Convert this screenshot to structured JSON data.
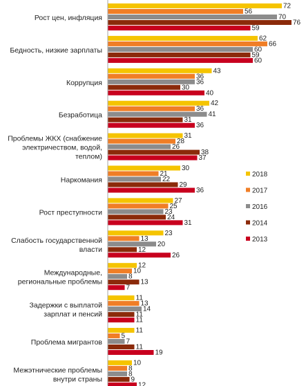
{
  "chart_data": {
    "type": "bar",
    "orientation": "horizontal",
    "grouped": true,
    "categories": [
      [
        "Рост цен, инфляция"
      ],
      [
        "Бедность, низкие зарплаты"
      ],
      [
        "Коррупция"
      ],
      [
        "Безработица"
      ],
      [
        "Проблемы ЖКХ (снабжение",
        "электричеством, водой,",
        "теплом)"
      ],
      [
        "Наркомания"
      ],
      [
        "Рост преступности"
      ],
      [
        "Слабость государственной",
        "власти"
      ],
      [
        "Международные,",
        "региональные проблемы"
      ],
      [
        "Задержки с выплатой",
        "зарплат и пенсий"
      ],
      [
        "Проблема мигрантов"
      ],
      [
        "Межэтнические проблемы",
        "внутри страны"
      ]
    ],
    "series": [
      {
        "name": "2018",
        "color": "#F5C400",
        "values": [
          72,
          62,
          43,
          42,
          31,
          30,
          27,
          23,
          12,
          11,
          11,
          10
        ]
      },
      {
        "name": "2017",
        "color": "#F07E26",
        "values": [
          56,
          66,
          36,
          36,
          28,
          21,
          25,
          13,
          10,
          13,
          5,
          8
        ]
      },
      {
        "name": "2016",
        "color": "#8C8C8C",
        "values": [
          70,
          60,
          36,
          41,
          26,
          22,
          23,
          20,
          8,
          14,
          7,
          8
        ]
      },
      {
        "name": "2014",
        "color": "#8B2A0A",
        "values": [
          76,
          59,
          30,
          31,
          38,
          29,
          24,
          12,
          13,
          11,
          11,
          9
        ]
      },
      {
        "name": "2013",
        "color": "#C8001E",
        "values": [
          59,
          60,
          40,
          36,
          37,
          36,
          31,
          26,
          7,
          11,
          19,
          12
        ]
      }
    ],
    "xlim": [
      0,
      80
    ],
    "legend": {
      "position": "right",
      "order": [
        "2018",
        "2017",
        "2016",
        "2014",
        "2013"
      ]
    },
    "grid": false,
    "axis_line": "left"
  }
}
